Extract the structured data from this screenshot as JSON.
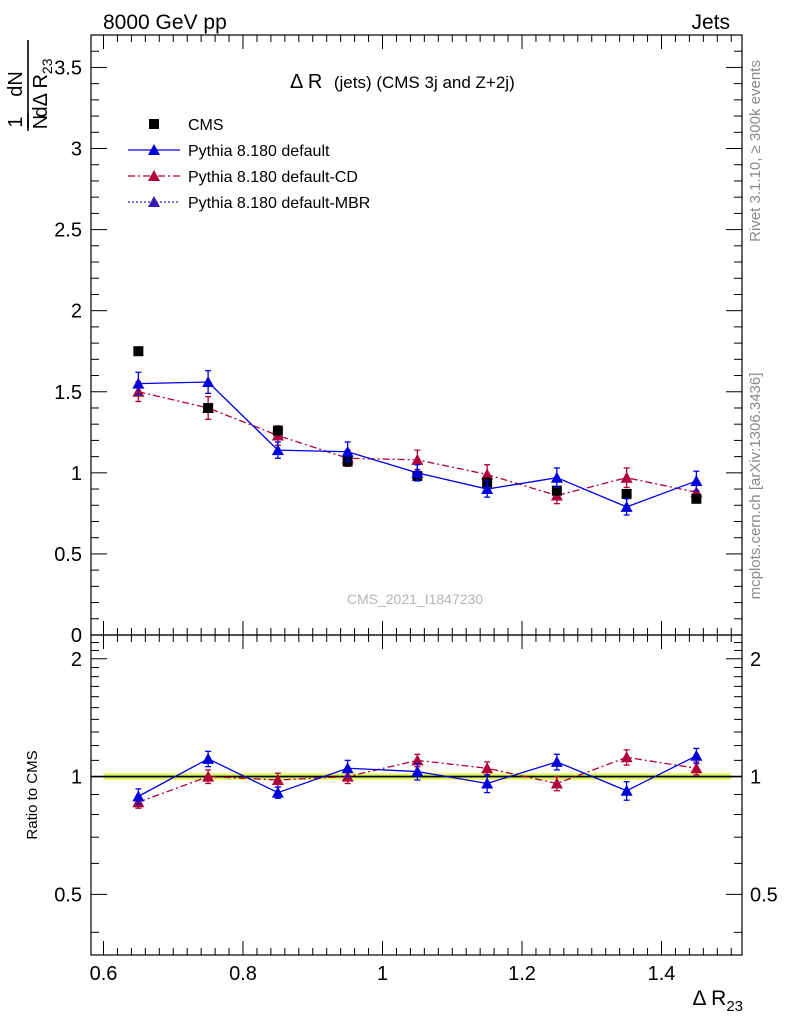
{
  "header": {
    "left_title": "8000 GeV pp",
    "right_title": "Jets"
  },
  "plot_title": {
    "main": "Δ R",
    "sub": "(jets) (CMS 3j and Z+2j)"
  },
  "y_label": {
    "frac_num": "1",
    "frac_den": "N",
    "deriv_num": "dN",
    "deriv_den": "dΔ R",
    "deriv_sub": "23"
  },
  "ratio_label": "Ratio to CMS",
  "x_label": {
    "main": "Δ R",
    "sub": "23"
  },
  "watermark": "CMS_2021_I1847230",
  "side_text": {
    "rivet": "Rivet 3.1.10, ≥ 300k events",
    "mcplots": "mcplots.cern.ch [arXiv:1306.3436]"
  },
  "legend": [
    {
      "label": "CMS",
      "marker": "square",
      "color": "#000000"
    },
    {
      "label": "Pythia 8.180 default",
      "marker": "triangle",
      "color": "#0000dd",
      "line": "solid"
    },
    {
      "label": "Pythia 8.180 default-CD",
      "marker": "triangle",
      "color": "#b0003a",
      "line": "dashdot"
    },
    {
      "label": "Pythia 8.180 default-MBR",
      "marker": "triangle",
      "color": "#3a1ab0",
      "line": "dotted"
    }
  ],
  "colors": {
    "cms": "#000000",
    "default": "#0000dd",
    "cd": "#b0003a",
    "mbr": "#3a1ab0",
    "band_outer": "#f2f56a",
    "band_inner": "#b9ef6b"
  },
  "chart_data": [
    {
      "type": "scatter",
      "panel": "main",
      "xlim": [
        0.6,
        1.5
      ],
      "ylim": [
        0,
        3.7
      ],
      "x_ticks": [
        0.6,
        0.8,
        1,
        1.2,
        1.4
      ],
      "x_tick_labels": [
        "0.6",
        "0.8",
        "1",
        "1.2",
        "1.4"
      ],
      "y_ticks": [
        0,
        0.5,
        1,
        1.5,
        2,
        2.5,
        3,
        3.5
      ],
      "y_tick_labels": [
        "0",
        "0.5",
        "1",
        "1.5",
        "2",
        "2.5",
        "3",
        "3.5"
      ],
      "x": [
        0.65,
        0.75,
        0.85,
        0.95,
        1.05,
        1.15,
        1.25,
        1.35,
        1.45
      ],
      "series": [
        {
          "name": "CMS",
          "key": "cms",
          "values": [
            1.75,
            1.4,
            1.26,
            1.07,
            0.98,
            0.94,
            0.89,
            0.87,
            0.84
          ]
        },
        {
          "name": "Pythia 8.180 default",
          "key": "default",
          "values": [
            1.55,
            1.56,
            1.14,
            1.13,
            1.0,
            0.9,
            0.97,
            0.79,
            0.95
          ],
          "err": [
            0.07,
            0.07,
            0.05,
            0.06,
            0.05,
            0.05,
            0.06,
            0.05,
            0.06
          ]
        },
        {
          "name": "Pythia 8.180 default-CD",
          "key": "cd",
          "values": [
            1.5,
            1.4,
            1.23,
            1.09,
            1.08,
            0.99,
            0.86,
            0.97,
            0.88
          ],
          "err": [
            0.06,
            0.07,
            0.06,
            0.05,
            0.06,
            0.06,
            0.05,
            0.06,
            0.05
          ]
        }
      ]
    },
    {
      "type": "scatter",
      "panel": "ratio",
      "xlim": [
        0.6,
        1.5
      ],
      "ylim": [
        0.35,
        2.3
      ],
      "y_scale": "log",
      "y_ticks": [
        0.5,
        1,
        2
      ],
      "y_tick_labels": [
        "0.5",
        "1",
        "2"
      ],
      "x": [
        0.65,
        0.75,
        0.85,
        0.95,
        1.05,
        1.15,
        1.25,
        1.35,
        1.45
      ],
      "series": [
        {
          "name": "Pythia 8.180 default",
          "key": "default",
          "values": [
            0.89,
            1.11,
            0.91,
            1.05,
            1.03,
            0.96,
            1.09,
            0.92,
            1.13
          ],
          "err": [
            0.04,
            0.05,
            0.03,
            0.05,
            0.05,
            0.05,
            0.05,
            0.05,
            0.05
          ]
        },
        {
          "name": "Pythia 8.180 default-CD",
          "key": "cd",
          "values": [
            0.86,
            1.0,
            0.98,
            1.0,
            1.1,
            1.05,
            0.96,
            1.12,
            1.05
          ],
          "err": [
            0.03,
            0.04,
            0.04,
            0.04,
            0.04,
            0.04,
            0.04,
            0.05,
            0.04
          ]
        }
      ],
      "reference_band": {
        "inner": [
          0.99,
          1.01
        ],
        "outer": [
          0.98,
          1.02
        ]
      }
    }
  ]
}
